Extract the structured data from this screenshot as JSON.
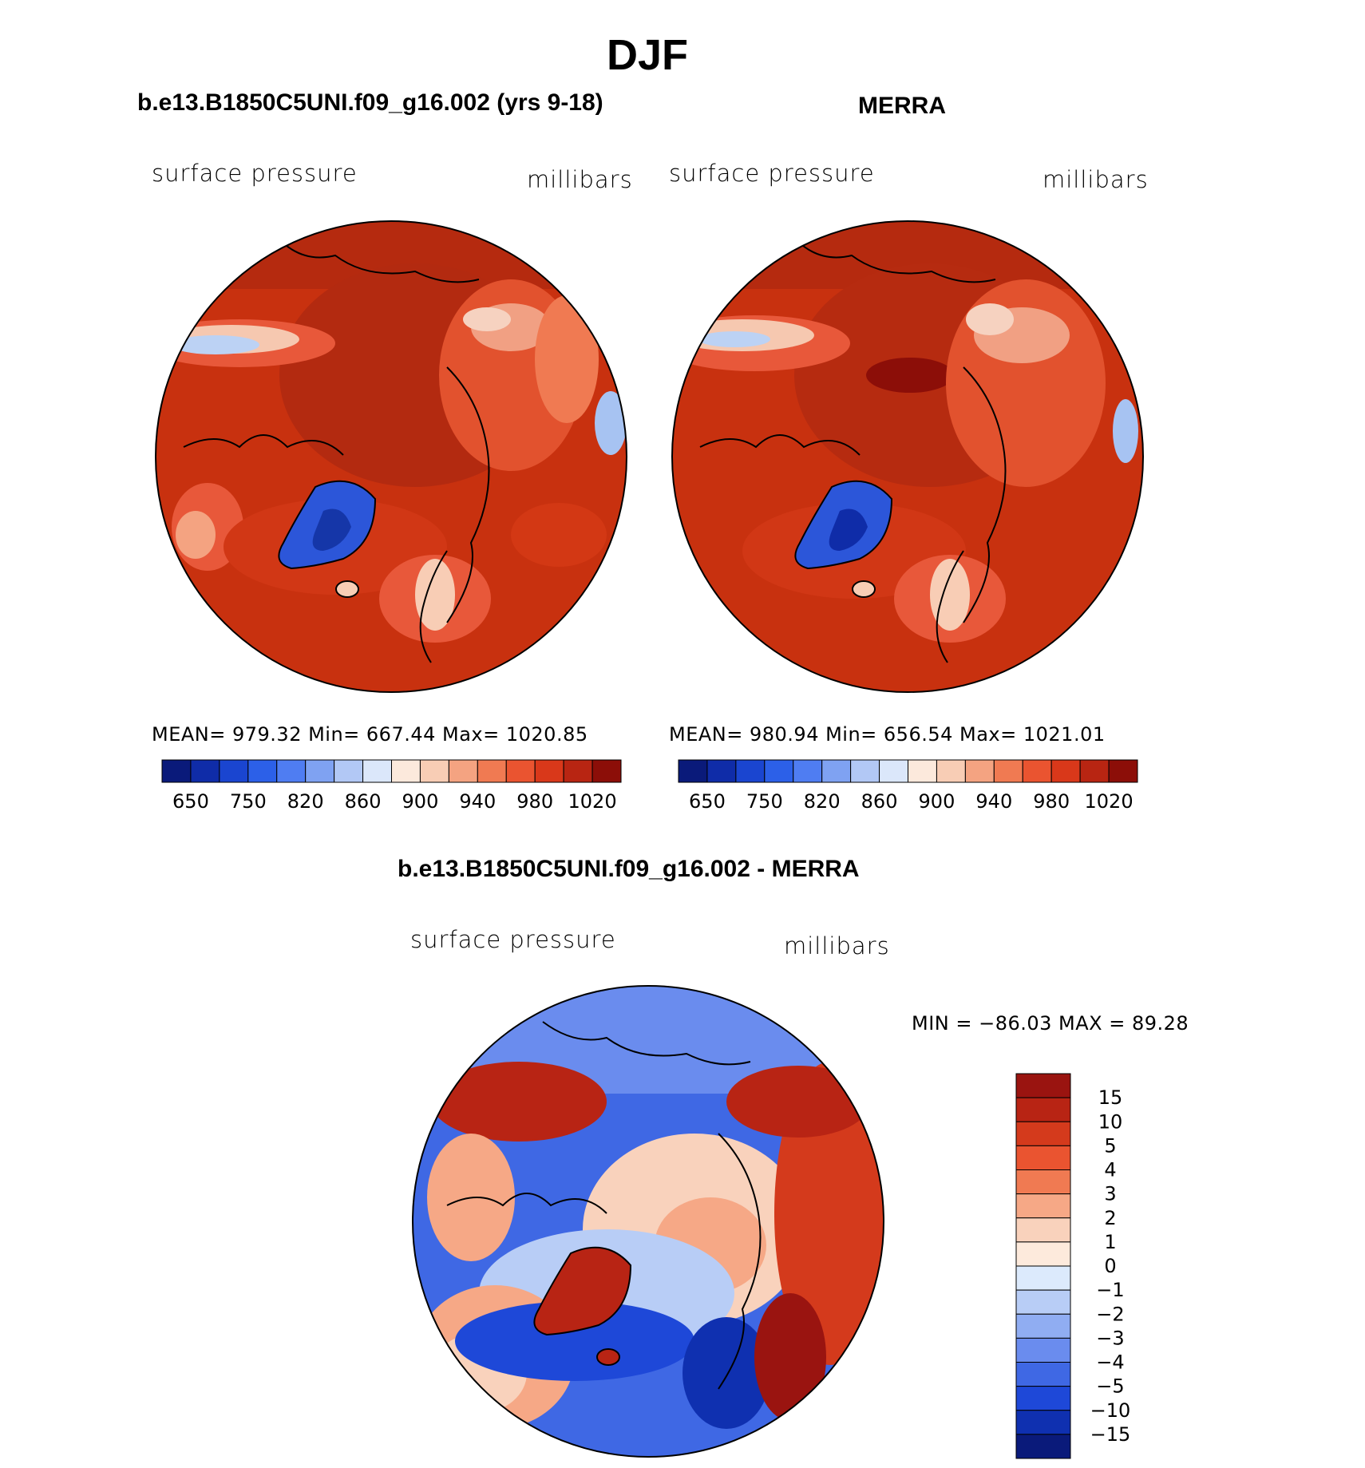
{
  "figure_title": "DJF",
  "panels": [
    {
      "title": "b.e13.B1850C5UNI.f09_g16.002 (yrs 9-18)",
      "left_label": "surface pressure",
      "right_label": "millibars",
      "stats": "MEAN= 979.32   Min= 667.44   Max= 1020.85"
    },
    {
      "title": "MERRA",
      "left_label": "surface pressure",
      "right_label": "millibars",
      "stats": "MEAN= 980.94   Min= 656.54   Max= 1021.01"
    },
    {
      "title": "b.e13.B1850C5UNI.f09_g16.002 - MERRA",
      "left_label": "surface pressure",
      "right_label": "millibars",
      "stats": "MIN = −86.03 MAX =   89.28"
    }
  ],
  "abs_colorbar": {
    "colors": [
      "#0a1a7a",
      "#0f2ca8",
      "#1a45d0",
      "#2c60e8",
      "#4f7df2",
      "#7fa2f2",
      "#b2c8f5",
      "#dbe7fa",
      "#fce9dc",
      "#f8cdb5",
      "#f4a381",
      "#f07a52",
      "#ea5430",
      "#d9381a",
      "#b82512",
      "#8c0e08"
    ],
    "labels": [
      "650",
      "750",
      "820",
      "860",
      "900",
      "940",
      "980",
      "1020"
    ]
  },
  "diff_colorbar": {
    "colors": [
      "#9a1410",
      "#b82414",
      "#d43a1c",
      "#ea5430",
      "#f07a52",
      "#f6a886",
      "#f9d2bc",
      "#fdeadc",
      "#dceafc",
      "#b8cdf6",
      "#90adf2",
      "#6a8cee",
      "#3f68e4",
      "#1e48d8",
      "#0f30b0",
      "#0a1a7a"
    ],
    "labels": [
      "15",
      "10",
      "5",
      "4",
      "3",
      "2",
      "1",
      "0",
      "−1",
      "−2",
      "−3",
      "−4",
      "−5",
      "−10",
      "−15"
    ]
  }
}
